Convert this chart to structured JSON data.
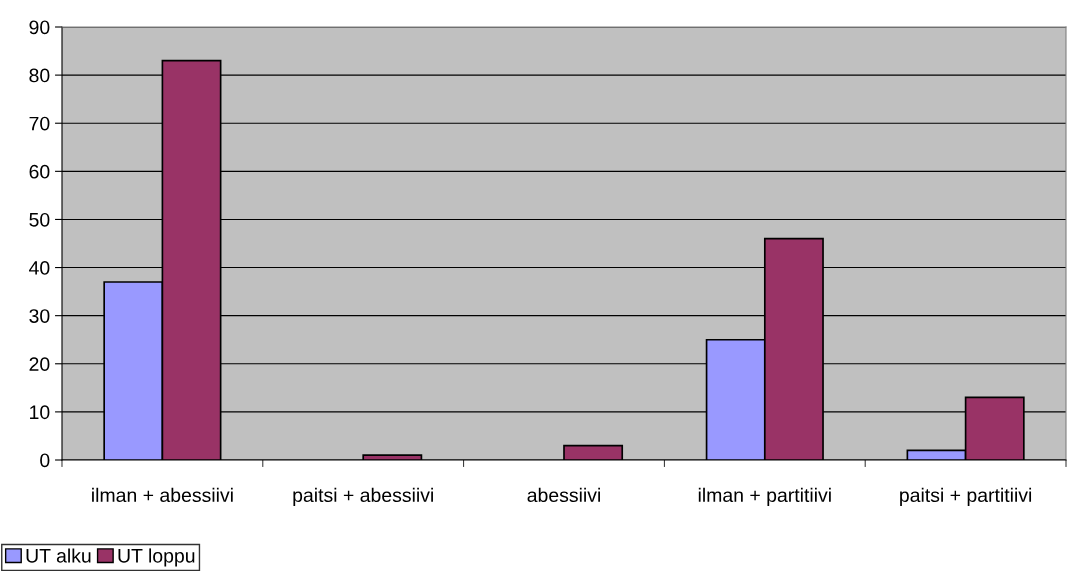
{
  "chart_data": {
    "type": "bar",
    "categories": [
      "ilman + abessiivi",
      "paitsi + abessiivi",
      "abessiivi",
      "ilman + partitiivi",
      "paitsi + partitiivi"
    ],
    "series": [
      {
        "name": "UT alku",
        "color": "#9999ff",
        "values": [
          37,
          null,
          null,
          25,
          2
        ]
      },
      {
        "name": "UT loppu",
        "color": "#993366",
        "values": [
          83,
          1,
          3,
          46,
          13
        ]
      }
    ],
    "ylim": [
      0,
      90
    ],
    "yticks": [
      0,
      10,
      20,
      30,
      40,
      50,
      60,
      70,
      80,
      90
    ],
    "grid": "y",
    "legend": "bottom left"
  }
}
